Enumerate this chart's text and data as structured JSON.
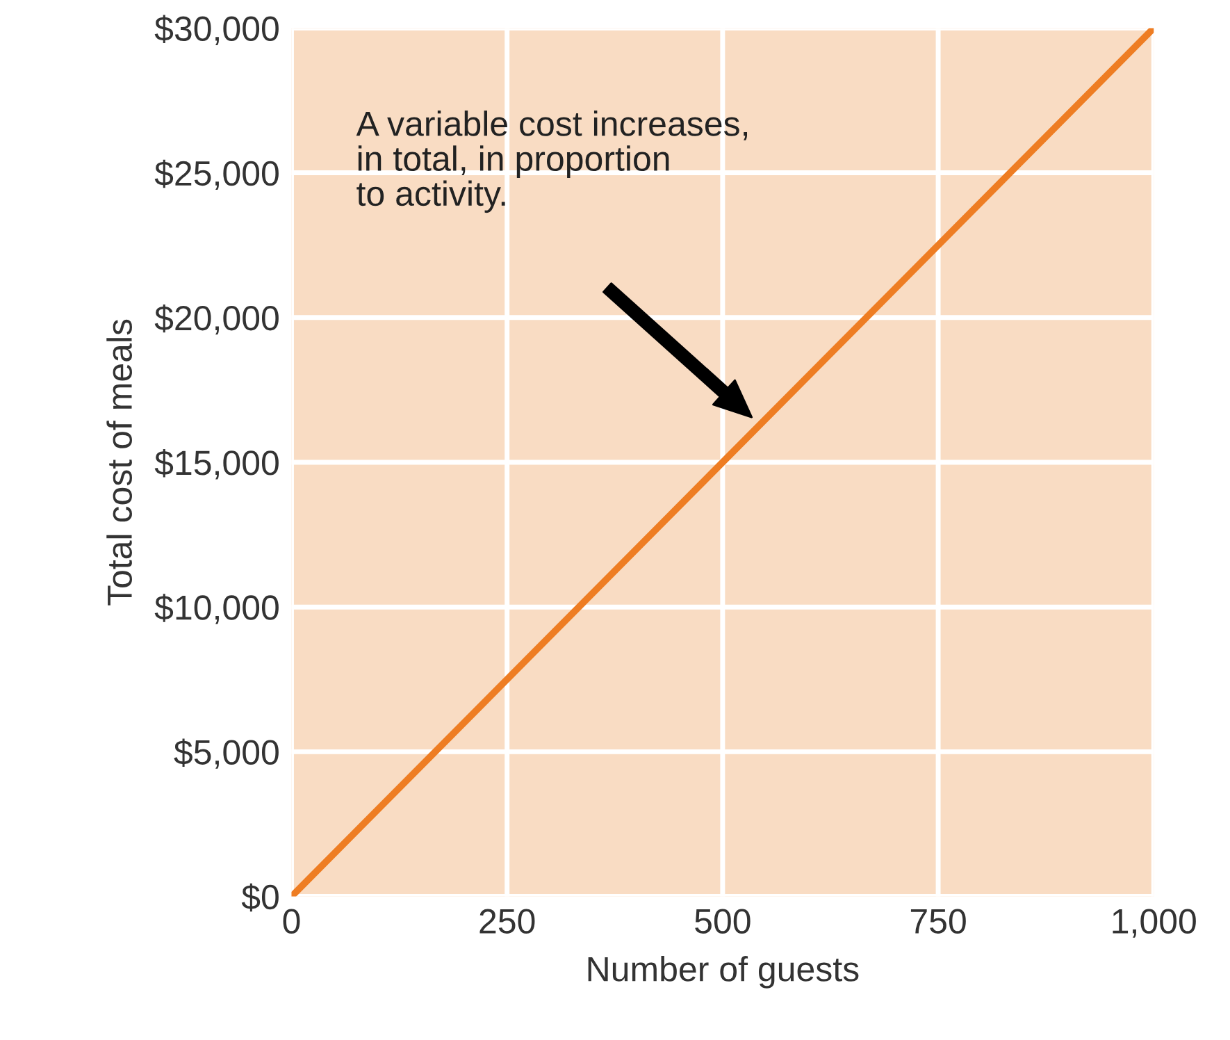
{
  "chart_data": {
    "type": "line",
    "xlabel": "Number of guests",
    "ylabel": "Total cost of meals",
    "x": [
      0,
      1000
    ],
    "series": [
      {
        "color": "#ee7d23",
        "values": [
          0,
          30000
        ]
      }
    ],
    "xlim": [
      0,
      1000
    ],
    "ylim": [
      0,
      30000
    ],
    "xticks": [
      0,
      250,
      500,
      750,
      {
        "value": 1000,
        "label": "1,000"
      }
    ],
    "yticks": [
      {
        "value": 0,
        "label": "$0"
      },
      {
        "value": 5000,
        "label": "$5,000"
      },
      {
        "value": 10000,
        "label": "$10,000"
      },
      {
        "value": 15000,
        "label": "$15,000"
      },
      {
        "value": 20000,
        "label": "$20,000"
      },
      {
        "value": 25000,
        "label": "$25,000"
      },
      {
        "value": 30000,
        "label": "$30,000"
      }
    ],
    "grid": true,
    "annotations": [
      "A variable cost increases,\nin total, in proportion\nto activity."
    ]
  }
}
